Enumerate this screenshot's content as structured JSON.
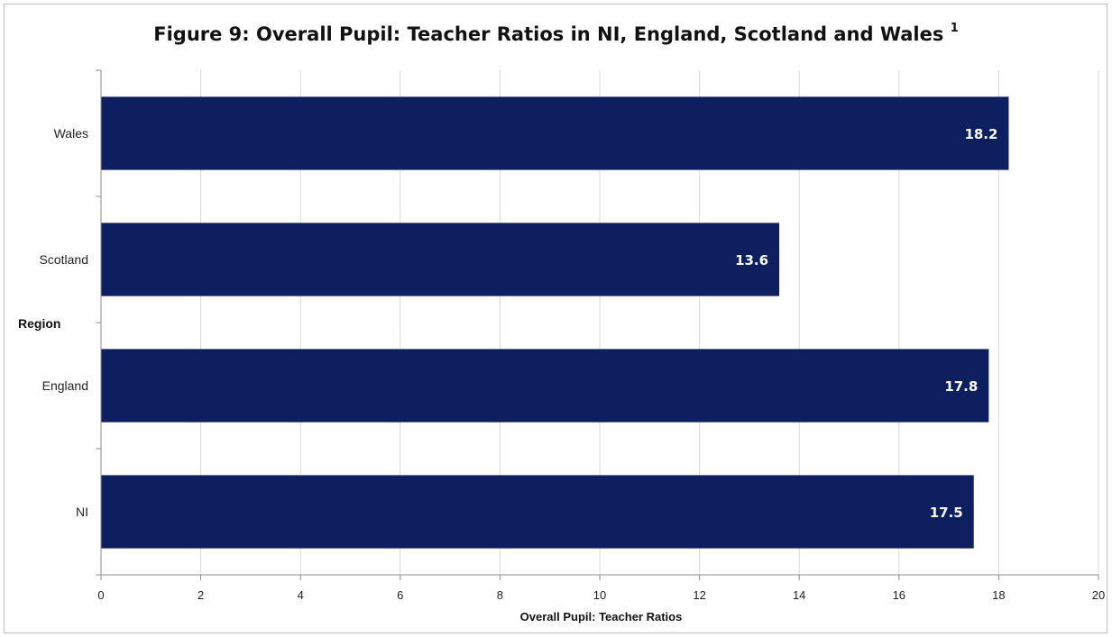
{
  "chart_data": {
    "type": "bar",
    "orientation": "horizontal",
    "title": "Figure 9: Overall Pupil: Teacher Ratios in NI, England, Scotland and Wales",
    "title_superscript": "1",
    "categories": [
      "NI",
      "England",
      "Scotland",
      "Wales"
    ],
    "values": [
      17.5,
      17.8,
      13.6,
      18.2
    ],
    "data_labels": [
      "17.5",
      "17.8",
      "13.6",
      "18.2"
    ],
    "xlabel": "Overall Pupil: Teacher Ratios",
    "ylabel": "Region",
    "xlim": [
      0,
      20
    ],
    "xticks": [
      "0",
      "2",
      "4",
      "6",
      "8",
      "10",
      "12",
      "14",
      "16",
      "18",
      "20"
    ],
    "grid": "vertical gridlines on",
    "legend": "none",
    "bar_color": "#0d1f5e",
    "data_label_color": "#ffffff"
  }
}
